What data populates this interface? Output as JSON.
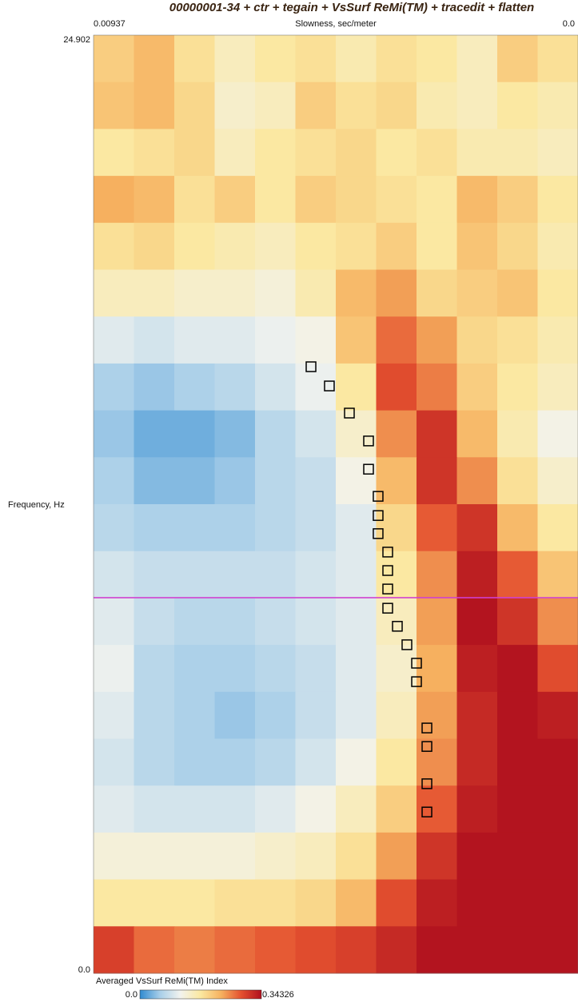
{
  "chart_data": {
    "type": "heatmap",
    "title": "00000001-34 + ctr + tegain + VsSurf ReMi(TM) + tracedit + flatten",
    "x_label": "Slowness, sec/meter",
    "y_label": "Frequency, Hz",
    "colorbar_label": "Averaged VsSurf ReMi(TM) Index",
    "xlim": [
      0.00937,
      0
    ],
    "xticks": [
      0.00937,
      {
        "value": 0,
        "label": "0.0"
      }
    ],
    "ylim": [
      0,
      24.902
    ],
    "yticks": [
      24.902,
      {
        "value": 0,
        "label": "0.0"
      }
    ],
    "zlim": [
      0,
      0.34326
    ],
    "zticks": [
      {
        "value": 0,
        "label": "0.0"
      },
      0.34326
    ],
    "colormap": [
      "#2f8ad0",
      "#a9cfe9",
      "#f2f3ee",
      "#fbe8a0",
      "#f6b260",
      "#e4502f",
      "#b0101e"
    ],
    "z": [
      [
        0.2,
        0.22,
        0.18,
        0.15,
        0.17,
        0.18,
        0.16,
        0.18,
        0.17,
        0.15,
        0.2,
        0.18
      ],
      [
        0.21,
        0.22,
        0.19,
        0.14,
        0.15,
        0.2,
        0.18,
        0.19,
        0.16,
        0.15,
        0.17,
        0.16
      ],
      [
        0.17,
        0.18,
        0.19,
        0.15,
        0.17,
        0.18,
        0.19,
        0.17,
        0.18,
        0.16,
        0.16,
        0.15
      ],
      [
        0.23,
        0.22,
        0.18,
        0.2,
        0.17,
        0.2,
        0.19,
        0.18,
        0.17,
        0.22,
        0.2,
        0.17
      ],
      [
        0.18,
        0.19,
        0.17,
        0.16,
        0.15,
        0.17,
        0.18,
        0.2,
        0.17,
        0.21,
        0.19,
        0.16
      ],
      [
        0.15,
        0.15,
        0.14,
        0.14,
        0.13,
        0.16,
        0.22,
        0.24,
        0.19,
        0.2,
        0.21,
        0.17
      ],
      [
        0.1,
        0.09,
        0.1,
        0.1,
        0.11,
        0.12,
        0.21,
        0.27,
        0.24,
        0.19,
        0.18,
        0.16
      ],
      [
        0.06,
        0.05,
        0.06,
        0.07,
        0.09,
        0.11,
        0.17,
        0.29,
        0.26,
        0.2,
        0.17,
        0.15
      ],
      [
        0.05,
        0.03,
        0.03,
        0.04,
        0.07,
        0.09,
        0.14,
        0.25,
        0.31,
        0.22,
        0.16,
        0.12
      ],
      [
        0.06,
        0.04,
        0.04,
        0.05,
        0.07,
        0.08,
        0.12,
        0.22,
        0.31,
        0.25,
        0.18,
        0.14
      ],
      [
        0.07,
        0.06,
        0.06,
        0.06,
        0.07,
        0.08,
        0.1,
        0.19,
        0.28,
        0.31,
        0.22,
        0.17
      ],
      [
        0.09,
        0.08,
        0.08,
        0.08,
        0.08,
        0.09,
        0.1,
        0.17,
        0.25,
        0.33,
        0.28,
        0.21
      ],
      [
        0.1,
        0.08,
        0.07,
        0.07,
        0.08,
        0.09,
        0.1,
        0.15,
        0.24,
        0.34,
        0.31,
        0.25
      ],
      [
        0.11,
        0.07,
        0.06,
        0.06,
        0.07,
        0.08,
        0.1,
        0.14,
        0.23,
        0.33,
        0.34,
        0.29
      ],
      [
        0.1,
        0.07,
        0.06,
        0.05,
        0.06,
        0.08,
        0.1,
        0.15,
        0.24,
        0.32,
        0.34,
        0.33
      ],
      [
        0.09,
        0.07,
        0.06,
        0.06,
        0.07,
        0.09,
        0.12,
        0.17,
        0.25,
        0.32,
        0.34,
        0.34
      ],
      [
        0.1,
        0.09,
        0.09,
        0.09,
        0.1,
        0.12,
        0.15,
        0.2,
        0.28,
        0.33,
        0.34,
        0.34
      ],
      [
        0.13,
        0.13,
        0.13,
        0.13,
        0.14,
        0.15,
        0.18,
        0.24,
        0.31,
        0.34,
        0.34,
        0.34
      ],
      [
        0.17,
        0.17,
        0.17,
        0.18,
        0.18,
        0.19,
        0.22,
        0.29,
        0.33,
        0.34,
        0.34,
        0.34
      ],
      [
        0.3,
        0.27,
        0.26,
        0.27,
        0.28,
        0.29,
        0.3,
        0.32,
        0.34,
        0.34,
        0.34,
        0.34
      ]
    ],
    "series": [
      {
        "color": "#000000",
        "x": [
          0.005164,
          0.004809,
          0.004422,
          0.004051,
          0.004051,
          0.003866,
          0.003866,
          0.003866,
          0.00368,
          0.00368,
          0.00368,
          0.00368,
          0.003494,
          0.003309,
          0.003123,
          0.003123,
          0.002922,
          0.002922,
          0.002922,
          0.002922
        ],
        "y": [
          16.1,
          15.59,
          14.87,
          14.13,
          13.38,
          12.66,
          12.15,
          11.67,
          11.18,
          10.69,
          10.2,
          9.69,
          9.21,
          8.72,
          8.23,
          7.74,
          6.51,
          6.02,
          5.03,
          4.28
        ]
      }
    ]
  }
}
